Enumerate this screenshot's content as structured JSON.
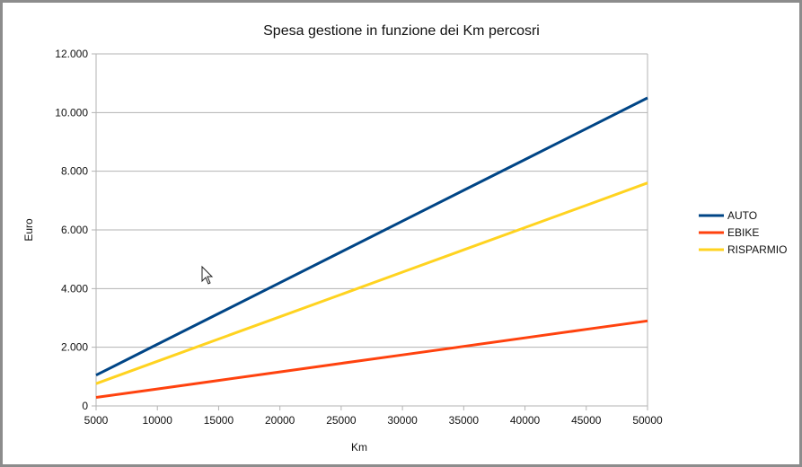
{
  "chart_data": {
    "type": "line",
    "title": "Spesa gestione in funzione dei Km percosri",
    "xlabel": "Km",
    "ylabel": "Euro",
    "x": [
      5000,
      10000,
      15000,
      20000,
      25000,
      30000,
      35000,
      40000,
      45000,
      50000
    ],
    "xlim": [
      5000,
      50000
    ],
    "ylim": [
      0,
      12000
    ],
    "x_ticks": [
      "5000",
      "10000",
      "15000",
      "20000",
      "25000",
      "30000",
      "35000",
      "40000",
      "45000",
      "50000"
    ],
    "y_tick_values": [
      0,
      2000,
      4000,
      6000,
      8000,
      10000,
      12000
    ],
    "y_ticks": [
      "0",
      "2.000",
      "4.000",
      "6.000",
      "8.000",
      "10.000",
      "12.000"
    ],
    "grid": "horizontal",
    "legend_position": "right",
    "series": [
      {
        "name": "AUTO",
        "color": "#004586",
        "values": [
          1050,
          2100,
          3150,
          4200,
          5250,
          6300,
          7350,
          8400,
          9450,
          10500
        ]
      },
      {
        "name": "EBIKE",
        "color": "#ff420e",
        "values": [
          290,
          580,
          870,
          1160,
          1450,
          1740,
          2030,
          2320,
          2610,
          2900
        ]
      },
      {
        "name": "RISPARMIO",
        "color": "#ffd320",
        "values": [
          760,
          1520,
          2280,
          3040,
          3800,
          4560,
          5320,
          6080,
          6840,
          7600
        ]
      }
    ]
  }
}
